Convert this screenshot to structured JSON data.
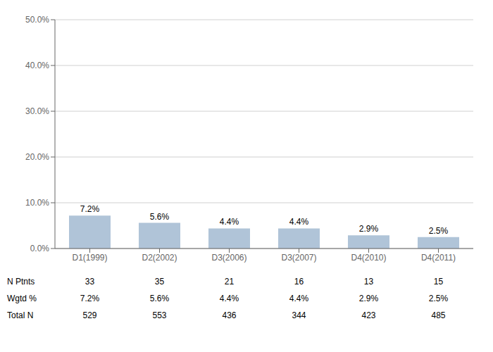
{
  "chart_data": {
    "type": "bar",
    "categories": [
      "D1(1999)",
      "D2(2002)",
      "D3(2006)",
      "D3(2007)",
      "D4(2010)",
      "D4(2011)"
    ],
    "values": [
      7.2,
      5.6,
      4.4,
      4.4,
      2.9,
      2.5
    ],
    "value_labels": [
      "7.2%",
      "5.6%",
      "4.4%",
      "4.4%",
      "2.9%",
      "2.5%"
    ],
    "data_labels": true,
    "color": "#b0c4d8",
    "ylim": [
      0,
      50
    ],
    "yticks": [
      {
        "value": 0,
        "label": "0.0%"
      },
      {
        "value": 10,
        "label": "10.0%"
      },
      {
        "value": 20,
        "label": "20.0%"
      },
      {
        "value": 30,
        "label": "30.0%"
      },
      {
        "value": 40,
        "label": "40.0%"
      },
      {
        "value": 50,
        "label": "50.0%"
      }
    ],
    "grid": true,
    "table": [
      {
        "label": "N Ptnts",
        "cells": [
          "33",
          "35",
          "21",
          "16",
          "13",
          "15"
        ]
      },
      {
        "label": "Wgtd %",
        "cells": [
          "7.2%",
          "5.6%",
          "4.4%",
          "4.4%",
          "2.9%",
          "2.5%"
        ]
      },
      {
        "label": "Total N",
        "cells": [
          "529",
          "553",
          "436",
          "344",
          "423",
          "485"
        ]
      }
    ]
  }
}
